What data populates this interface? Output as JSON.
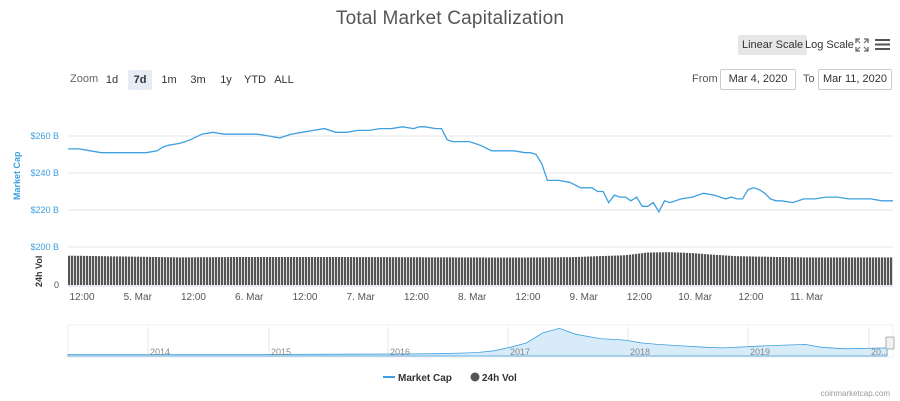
{
  "header": {
    "title": "Total Market Capitalization",
    "linear_scale": "Linear Scale",
    "log_scale": "Log Scale"
  },
  "icons": {
    "fullscreen": "fullscreen-icon",
    "menu": "hamburger-menu-icon"
  },
  "zoom": {
    "label": "Zoom",
    "options": [
      "1d",
      "7d",
      "1m",
      "3m",
      "1y",
      "YTD",
      "ALL"
    ],
    "active": "7d"
  },
  "range": {
    "from_label": "From",
    "from": "Mar 4, 2020",
    "to_label": "To",
    "to": "Mar 11, 2020"
  },
  "legend": {
    "market_cap": "Market Cap",
    "vol": "24h Vol"
  },
  "credit": "coinmarketcap.com",
  "colors": {
    "market_cap": "#3ea0e0",
    "volume": "#555555",
    "grid": "#e6e6e6"
  },
  "chart_data": [
    {
      "type": "line",
      "title": "Total Market Capitalization",
      "ylabel": "Market Cap",
      "yticks": [
        "$260 B",
        "$240 B",
        "$220 B",
        "$200 B"
      ],
      "ylim": [
        200,
        270
      ],
      "xlim": [
        0,
        7.4
      ],
      "x_ticks": [
        {
          "x": 0.0,
          "label": "12:00"
        },
        {
          "x": 0.5,
          "label": "5. Mar"
        },
        {
          "x": 1.0,
          "label": "12:00"
        },
        {
          "x": 1.5,
          "label": "6. Mar"
        },
        {
          "x": 2.0,
          "label": "12:00"
        },
        {
          "x": 2.5,
          "label": "7. Mar"
        },
        {
          "x": 3.0,
          "label": "12:00"
        },
        {
          "x": 3.5,
          "label": "8. Mar"
        },
        {
          "x": 4.0,
          "label": "12:00"
        },
        {
          "x": 4.5,
          "label": "9. Mar"
        },
        {
          "x": 5.0,
          "label": "12:00"
        },
        {
          "x": 5.5,
          "label": "10. Mar"
        },
        {
          "x": 6.0,
          "label": "12:00"
        },
        {
          "x": 6.5,
          "label": "11. Mar"
        }
      ],
      "series": [
        {
          "name": "Market Cap",
          "x": [
            0.0,
            0.1,
            0.2,
            0.3,
            0.4,
            0.5,
            0.6,
            0.7,
            0.8,
            0.85,
            0.9,
            1.0,
            1.05,
            1.1,
            1.2,
            1.3,
            1.4,
            1.5,
            1.6,
            1.7,
            1.8,
            1.9,
            2.0,
            2.1,
            2.2,
            2.3,
            2.4,
            2.5,
            2.6,
            2.7,
            2.8,
            2.9,
            3.0,
            3.1,
            3.15,
            3.2,
            3.3,
            3.35,
            3.4,
            3.45,
            3.5,
            3.6,
            3.7,
            3.8,
            3.9,
            4.0,
            4.1,
            4.15,
            4.2,
            4.25,
            4.3,
            4.4,
            4.5,
            4.6,
            4.7,
            4.75,
            4.8,
            4.85,
            4.9,
            4.95,
            5.0,
            5.05,
            5.1,
            5.15,
            5.2,
            5.25,
            5.3,
            5.35,
            5.4,
            5.5,
            5.6,
            5.7,
            5.8,
            5.85,
            5.9,
            5.95,
            6.0,
            6.05,
            6.1,
            6.15,
            6.2,
            6.25,
            6.3,
            6.35,
            6.4,
            6.5,
            6.6,
            6.7,
            6.8,
            6.9,
            7.0,
            7.1,
            7.2,
            7.3,
            7.4
          ],
          "y": [
            253,
            253,
            252,
            251,
            251,
            251,
            251,
            251,
            252,
            254,
            255,
            256,
            257,
            258,
            261,
            262,
            261,
            261,
            261,
            261,
            260,
            259,
            261,
            262,
            263,
            264,
            262,
            262,
            263,
            263,
            264,
            264,
            265,
            264,
            265,
            265,
            264,
            264,
            258,
            257,
            257,
            257,
            255,
            252,
            252,
            252,
            251,
            251,
            250,
            245,
            236,
            236,
            235,
            232,
            232,
            230,
            230,
            224,
            228,
            227,
            227,
            225,
            227,
            222,
            222,
            224,
            219,
            225,
            224,
            226,
            227,
            229,
            228,
            227,
            226,
            227,
            226,
            226,
            231,
            232,
            231,
            229,
            226,
            225,
            225,
            224,
            226,
            226,
            227,
            227,
            226,
            226,
            226,
            225,
            225
          ]
        }
      ]
    },
    {
      "type": "bar",
      "ylabel": "24h Vol",
      "yticks": [
        "0"
      ],
      "ylim": [
        0,
        220
      ],
      "x": [
        0.0,
        0.5,
        1.0,
        1.5,
        2.0,
        2.5,
        3.0,
        3.5,
        4.0,
        4.5,
        5.0,
        5.2,
        5.4,
        5.6,
        5.8,
        6.0,
        6.3,
        6.6,
        7.0,
        7.4
      ],
      "series": [
        {
          "name": "24h Vol",
          "values": [
            170,
            165,
            160,
            162,
            162,
            162,
            161,
            160,
            159,
            161,
            172,
            188,
            190,
            185,
            175,
            167,
            163,
            160,
            160,
            160
          ]
        }
      ]
    },
    {
      "type": "area",
      "xticks": [
        "2014",
        "2015",
        "2016",
        "2017",
        "2018",
        "2019",
        "20..."
      ],
      "x": [
        0,
        0.1,
        0.2,
        0.3,
        0.4,
        0.45,
        0.48,
        0.5,
        0.52,
        0.54,
        0.56,
        0.58,
        0.6,
        0.62,
        0.65,
        0.68,
        0.7,
        0.72,
        0.75,
        0.78,
        0.8,
        0.85,
        0.9,
        0.92,
        0.95,
        1.0
      ],
      "y": [
        5,
        5,
        5,
        6,
        7,
        8,
        10,
        12,
        18,
        30,
        45,
        80,
        95,
        75,
        60,
        55,
        45,
        40,
        35,
        30,
        28,
        35,
        40,
        30,
        25,
        28
      ]
    }
  ]
}
